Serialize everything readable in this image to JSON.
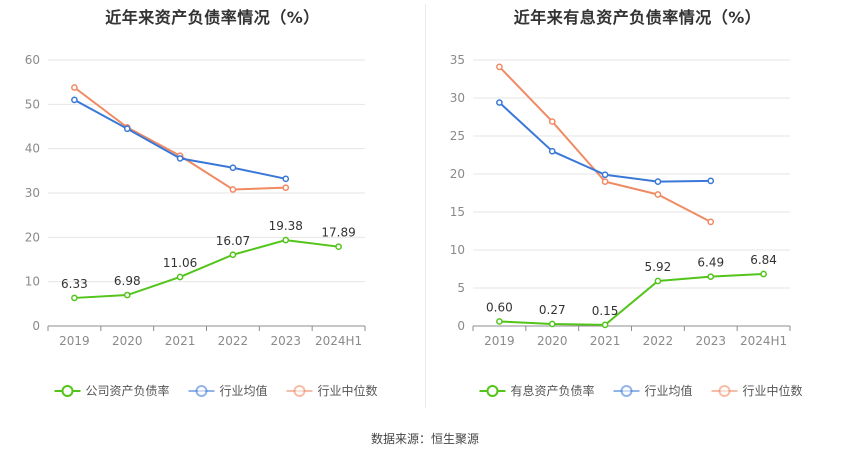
{
  "source_label": "数据来源：恒生聚源",
  "chart_data": [
    {
      "type": "line",
      "title": "近年来资产负债率情况（%）",
      "categories": [
        "2019",
        "2020",
        "2021",
        "2022",
        "2023",
        "2024H1"
      ],
      "ylim": [
        0,
        60
      ],
      "yticks": [
        0,
        10,
        20,
        30,
        40,
        50,
        60
      ],
      "grid": true,
      "legend_position": "bottom",
      "series": [
        {
          "name": "公司资产负债率",
          "color": "#52c41a",
          "values": [
            6.33,
            6.98,
            11.06,
            16.07,
            19.38,
            17.89
          ],
          "labels": [
            "6.33",
            "6.98",
            "11.06",
            "16.07",
            "19.38",
            "17.89"
          ]
        },
        {
          "name": "行业均值",
          "color": "#3a78d8",
          "values": [
            51.0,
            44.5,
            37.8,
            35.7,
            33.2,
            null
          ]
        },
        {
          "name": "行业中位数",
          "color": "#f08a63",
          "values": [
            53.8,
            44.8,
            38.4,
            30.8,
            31.2,
            null
          ]
        }
      ]
    },
    {
      "type": "line",
      "title": "近年来有息资产负债率情况（%）",
      "categories": [
        "2019",
        "2020",
        "2021",
        "2022",
        "2023",
        "2024H1"
      ],
      "ylim": [
        0,
        35
      ],
      "yticks": [
        0,
        5,
        10,
        15,
        20,
        25,
        30,
        35
      ],
      "grid": true,
      "legend_position": "bottom",
      "series": [
        {
          "name": "有息资产负债率",
          "color": "#52c41a",
          "values": [
            0.6,
            0.27,
            0.15,
            5.92,
            6.49,
            6.84
          ],
          "labels": [
            "0.60",
            "0.27",
            "0.15",
            "5.92",
            "6.49",
            "6.84"
          ]
        },
        {
          "name": "行业均值",
          "color": "#3a78d8",
          "values": [
            29.4,
            23.0,
            19.9,
            19.0,
            19.1,
            null
          ]
        },
        {
          "name": "行业中位数",
          "color": "#f08a63",
          "values": [
            34.1,
            26.9,
            19.0,
            17.3,
            13.7,
            null
          ]
        }
      ]
    }
  ]
}
